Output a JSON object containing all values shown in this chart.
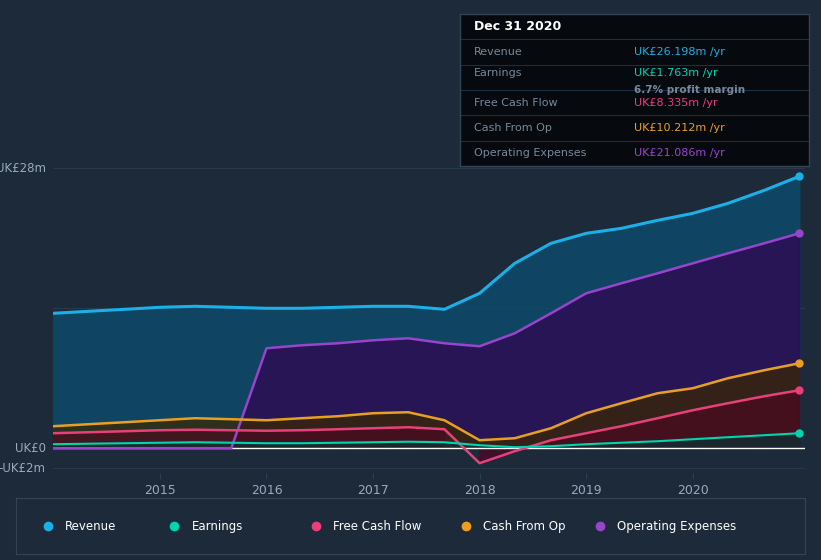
{
  "bg_color": "#1c2a3a",
  "plot_bg_color": "#1c2a3a",
  "x_years": [
    2014.0,
    2014.33,
    2014.67,
    2015.0,
    2015.33,
    2015.67,
    2016.0,
    2016.33,
    2016.67,
    2017.0,
    2017.33,
    2017.67,
    2018.0,
    2018.33,
    2018.67,
    2019.0,
    2019.33,
    2019.67,
    2020.0,
    2020.33,
    2020.67,
    2021.0
  ],
  "revenue": [
    13.5,
    13.7,
    13.9,
    14.1,
    14.2,
    14.1,
    14.0,
    14.0,
    14.1,
    14.2,
    14.2,
    13.9,
    15.5,
    18.5,
    20.5,
    21.5,
    22.0,
    22.8,
    23.5,
    24.5,
    25.8,
    27.2
  ],
  "earnings": [
    0.4,
    0.45,
    0.5,
    0.55,
    0.6,
    0.55,
    0.5,
    0.5,
    0.55,
    0.6,
    0.65,
    0.6,
    0.3,
    0.1,
    0.2,
    0.4,
    0.55,
    0.7,
    0.9,
    1.1,
    1.3,
    1.5
  ],
  "free_cash_flow": [
    1.5,
    1.6,
    1.7,
    1.8,
    1.85,
    1.8,
    1.75,
    1.8,
    1.9,
    2.0,
    2.1,
    1.9,
    -1.5,
    -0.3,
    0.8,
    1.5,
    2.2,
    3.0,
    3.8,
    4.5,
    5.2,
    5.8
  ],
  "cash_from_op": [
    2.2,
    2.4,
    2.6,
    2.8,
    3.0,
    2.9,
    2.8,
    3.0,
    3.2,
    3.5,
    3.6,
    2.8,
    0.8,
    1.0,
    2.0,
    3.5,
    4.5,
    5.5,
    6.0,
    7.0,
    7.8,
    8.5
  ],
  "operating_expenses": [
    0.0,
    0.0,
    0.0,
    0.0,
    0.0,
    0.0,
    10.0,
    10.3,
    10.5,
    10.8,
    11.0,
    10.5,
    10.2,
    11.5,
    13.5,
    15.5,
    16.5,
    17.5,
    18.5,
    19.5,
    20.5,
    21.5
  ],
  "revenue_color": "#1ab0e8",
  "earnings_color": "#00d4b0",
  "fcf_color": "#e8407a",
  "cashop_color": "#e8a020",
  "opex_color": "#9944cc",
  "revenue_fill_color": "#0d4a6b",
  "opex_fill_color": "#2a1055",
  "cashop_fill_color": "#3a2800",
  "fcf_fill_color": "#550022",
  "earnings_fill_color": "#003838",
  "grid_color": "#2a3f55",
  "zero_line_color": "#ffffff",
  "text_color": "#99aabb",
  "label_color": "#778899",
  "infobox_bg": "#060a0e",
  "infobox_border": "#334455",
  "infobox_title": "Dec 31 2020",
  "info_revenue_label": "Revenue",
  "info_revenue_value": "UK£26.198m /yr",
  "info_revenue_color": "#1ab0e8",
  "info_earnings_label": "Earnings",
  "info_earnings_value": "UK£1.763m /yr",
  "info_earnings_color": "#00d4b0",
  "info_margin": "6.7% profit margin",
  "info_margin_bold_color": "#dddddd",
  "info_margin_rest_color": "#778899",
  "info_fcf_label": "Free Cash Flow",
  "info_fcf_value": "UK£8.335m /yr",
  "info_fcf_color": "#e8407a",
  "info_cashop_label": "Cash From Op",
  "info_cashop_value": "UK£10.212m /yr",
  "info_cashop_color": "#e8a020",
  "info_opex_label": "Operating Expenses",
  "info_opex_value": "UK£21.086m /yr",
  "info_opex_color": "#9944cc",
  "xtick_years": [
    2015,
    2016,
    2017,
    2018,
    2019,
    2020
  ],
  "ylim_min": -2.5,
  "ylim_max": 30.0,
  "y_label_28": "UK£28m",
  "y_label_0": "UK£0",
  "y_label_neg2": "-UK£2m"
}
